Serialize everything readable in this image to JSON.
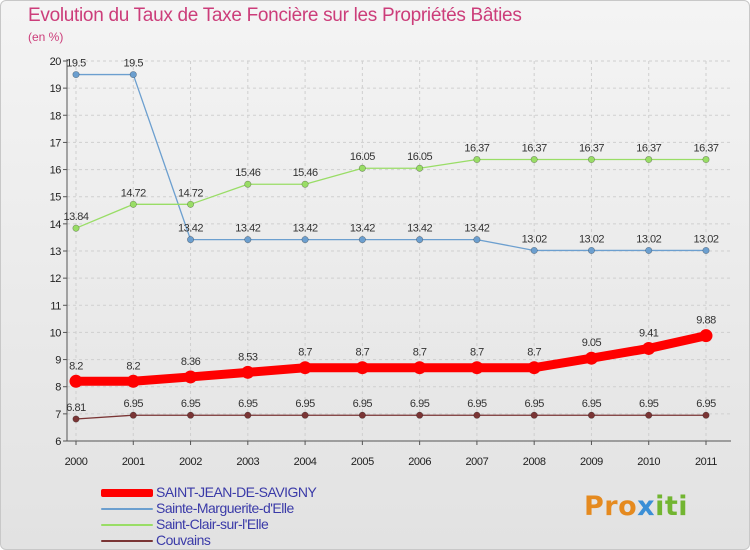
{
  "title": "Evolution du Taux de Taxe Foncière sur les Propriétés Bâties",
  "unit_label": "(en %)",
  "logo": {
    "part1": "Pro",
    "part2": "x",
    "part3": "iti"
  },
  "chart_data": {
    "type": "line",
    "title": "Evolution du Taux de Taxe Foncière sur les Propriétés Bâties",
    "ylabel": "(en %)",
    "xlabel": "",
    "ylim": [
      6,
      20
    ],
    "yticks": [
      6,
      7,
      8,
      9,
      10,
      11,
      12,
      13,
      14,
      15,
      16,
      17,
      18,
      19,
      20
    ],
    "grid": true,
    "legend_position": "bottom-left",
    "x": [
      "2000",
      "2001",
      "2002",
      "2003",
      "2004",
      "2005",
      "2006",
      "2007",
      "2008",
      "2009",
      "2010",
      "2011"
    ],
    "series": [
      {
        "name": "SAINT-JEAN-DE-SAVIGNY",
        "color": "#ff0000",
        "width": "thick",
        "values": [
          8.2,
          8.2,
          8.36,
          8.53,
          8.7,
          8.7,
          8.7,
          8.7,
          8.7,
          9.05,
          9.41,
          9.88
        ],
        "labels": [
          "8.2",
          "8.2",
          "8.36",
          "8.53",
          "8.7",
          "8.7",
          "8.7",
          "8.7",
          "8.7",
          "9.05",
          "9.41",
          "9.88"
        ]
      },
      {
        "name": "Sainte-Marguerite-d'Elle",
        "color": "#6c9fcf",
        "width": "thin",
        "values": [
          19.5,
          19.5,
          13.42,
          13.42,
          13.42,
          13.42,
          13.42,
          13.42,
          13.02,
          13.02,
          13.02,
          13.02
        ],
        "labels": [
          "19.5",
          "19.5",
          "13.42",
          "13.42",
          "13.42",
          "13.42",
          "13.42",
          "13.42",
          "13.02",
          "13.02",
          "13.02",
          "13.02"
        ]
      },
      {
        "name": "Saint-Clair-sur-l'Elle",
        "color": "#99dd66",
        "width": "thin",
        "values": [
          13.84,
          14.72,
          14.72,
          15.46,
          15.46,
          16.05,
          16.05,
          16.37,
          16.37,
          16.37,
          16.37,
          16.37
        ],
        "labels": [
          "13.84",
          "14.72",
          "14.72",
          "15.46",
          "15.46",
          "16.05",
          "16.05",
          "16.37",
          "16.37",
          "16.37",
          "16.37",
          "16.37"
        ]
      },
      {
        "name": "Couvains",
        "color": "#7a3535",
        "width": "thin",
        "values": [
          6.81,
          6.95,
          6.95,
          6.95,
          6.95,
          6.95,
          6.95,
          6.95,
          6.95,
          6.95,
          6.95,
          6.95
        ],
        "labels": [
          "6.81",
          "6.95",
          "6.95",
          "6.95",
          "6.95",
          "6.95",
          "6.95",
          "6.95",
          "6.95",
          "6.95",
          "6.95",
          "6.95"
        ]
      }
    ]
  }
}
